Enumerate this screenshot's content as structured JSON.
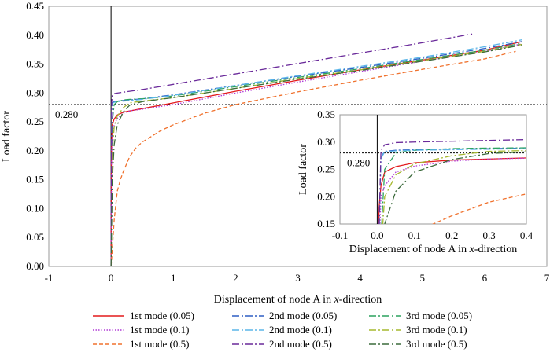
{
  "chart_data": [
    {
      "id": "main",
      "type": "line",
      "title": "",
      "xlabel_prefix": "Displacement of node A in ",
      "xlabel_italic": "x",
      "xlabel_suffix": "-direction",
      "ylabel": "Load factor",
      "xlim": [
        -1,
        7
      ],
      "ylim": [
        0,
        0.45
      ],
      "xticks": [
        "-1",
        "0",
        "1",
        "2",
        "3",
        "4",
        "5",
        "6",
        "7"
      ],
      "yticks": [
        "0.00",
        "0.05",
        "0.10",
        "0.15",
        "0.20",
        "0.25",
        "0.30",
        "0.35",
        "0.40",
        "0.45"
      ],
      "reference_line": {
        "y": 0.28,
        "label": "0.280"
      },
      "zero_line_x": 0,
      "grid": false,
      "series": [
        {
          "name": "1st mode (0.05)",
          "color": "#e31a1c",
          "dash": "solid",
          "x": [
            0,
            0.005,
            0.01,
            0.02,
            0.05,
            0.1,
            0.2,
            0.5,
            1,
            2,
            3,
            4,
            5,
            6,
            6.6
          ],
          "y": [
            0,
            0.18,
            0.22,
            0.245,
            0.255,
            0.262,
            0.267,
            0.273,
            0.283,
            0.303,
            0.322,
            0.34,
            0.357,
            0.374,
            0.389
          ]
        },
        {
          "name": "2nd mode (0.05)",
          "color": "#2f5fc4",
          "dash": "dashdot",
          "x": [
            0,
            0.01,
            0.02,
            0.05,
            0.1,
            0.3,
            0.5,
            1,
            2,
            3,
            4,
            5,
            6,
            6.6
          ],
          "y": [
            0,
            0.272,
            0.283,
            0.285,
            0.286,
            0.288,
            0.29,
            0.297,
            0.313,
            0.329,
            0.344,
            0.36,
            0.377,
            0.389
          ]
        },
        {
          "name": "3rd mode (0.05)",
          "color": "#2ca25f",
          "dash": "dashdot",
          "x": [
            0,
            0.02,
            0.05,
            0.1,
            0.2,
            0.3,
            0.5,
            1,
            2,
            3,
            4,
            5,
            6,
            6.6
          ],
          "y": [
            0,
            0.25,
            0.28,
            0.285,
            0.288,
            0.289,
            0.29,
            0.295,
            0.311,
            0.327,
            0.342,
            0.358,
            0.374,
            0.386
          ]
        },
        {
          "name": "1st mode (0.1)",
          "color": "#b03ad6",
          "dash": "dot",
          "x": [
            0,
            0.01,
            0.02,
            0.05,
            0.1,
            0.2,
            0.3,
            0.5,
            1,
            2,
            3,
            4,
            5,
            6,
            6.6
          ],
          "y": [
            0,
            0.2,
            0.22,
            0.245,
            0.256,
            0.265,
            0.269,
            0.272,
            0.28,
            0.3,
            0.319,
            0.337,
            0.355,
            0.372,
            0.385
          ]
        },
        {
          "name": "2nd mode (0.1)",
          "color": "#5bb6e8",
          "dash": "dashdot",
          "x": [
            0,
            0.01,
            0.02,
            0.05,
            0.1,
            0.3,
            0.5,
            1,
            2,
            3,
            4,
            5,
            6,
            6.6
          ],
          "y": [
            0,
            0.27,
            0.282,
            0.284,
            0.285,
            0.287,
            0.289,
            0.296,
            0.313,
            0.33,
            0.346,
            0.362,
            0.38,
            0.392
          ]
        },
        {
          "name": "3rd mode (0.1)",
          "color": "#a6b82e",
          "dash": "dashdot",
          "x": [
            0,
            0.02,
            0.05,
            0.1,
            0.2,
            0.3,
            0.5,
            1,
            2,
            3,
            4,
            5,
            6,
            6.6
          ],
          "y": [
            0,
            0.2,
            0.24,
            0.26,
            0.275,
            0.283,
            0.286,
            0.292,
            0.308,
            0.325,
            0.34,
            0.356,
            0.372,
            0.384
          ]
        },
        {
          "name": "1st mode (0.5)",
          "color": "#f0722e",
          "dash": "dash",
          "x": [
            0,
            0.02,
            0.05,
            0.1,
            0.15,
            0.2,
            0.3,
            0.4,
            0.5,
            0.8,
            1,
            1.5,
            2,
            3,
            4,
            5,
            6,
            6.5
          ],
          "y": [
            0,
            0.03,
            0.08,
            0.13,
            0.15,
            0.165,
            0.19,
            0.205,
            0.215,
            0.235,
            0.245,
            0.265,
            0.28,
            0.302,
            0.322,
            0.341,
            0.359,
            0.372
          ]
        },
        {
          "name": "2nd mode (0.5)",
          "color": "#6a2a9a",
          "dash": "dashdot",
          "x": [
            0,
            0.01,
            0.02,
            0.05,
            0.1,
            0.3,
            0.5,
            1,
            2,
            3,
            4,
            5,
            5.8
          ],
          "y": [
            0,
            0.285,
            0.295,
            0.299,
            0.3,
            0.303,
            0.306,
            0.315,
            0.333,
            0.351,
            0.369,
            0.387,
            0.402
          ]
        },
        {
          "name": "3rd mode (0.5)",
          "color": "#3c6b3c",
          "dash": "dashdot",
          "x": [
            0,
            0.02,
            0.05,
            0.1,
            0.2,
            0.3,
            0.5,
            1,
            2,
            3,
            4,
            5,
            6,
            6.6
          ],
          "y": [
            0,
            0.15,
            0.21,
            0.245,
            0.268,
            0.279,
            0.285,
            0.292,
            0.308,
            0.324,
            0.339,
            0.355,
            0.371,
            0.383
          ]
        }
      ]
    },
    {
      "id": "inset",
      "type": "line",
      "title": "",
      "xlabel_prefix": "Displacement of node A in ",
      "xlabel_italic": "x",
      "xlabel_suffix": "-direction",
      "ylabel": "Load factor",
      "xlim": [
        -0.1,
        0.4
      ],
      "ylim": [
        0.15,
        0.35
      ],
      "xticks": [
        "-0.1",
        "0.0",
        "0.1",
        "0.2",
        "0.3",
        "0.4"
      ],
      "yticks": [
        "0.15",
        "0.20",
        "0.25",
        "0.30",
        "0.35"
      ],
      "reference_line": {
        "y": 0.28,
        "label": "0.280"
      },
      "zero_line_x": 0,
      "grid": false,
      "note": "Zoomed view of the same nine series near the origin"
    }
  ],
  "legend": {
    "columns": 3,
    "entries": [
      "1st mode (0.05)",
      "2nd mode (0.05)",
      "3rd mode (0.05)",
      "1st mode (0.1)",
      "2nd mode (0.1)",
      "3rd mode (0.1)",
      "1st mode (0.5)",
      "2nd mode (0.5)",
      "3rd mode (0.5)"
    ]
  }
}
